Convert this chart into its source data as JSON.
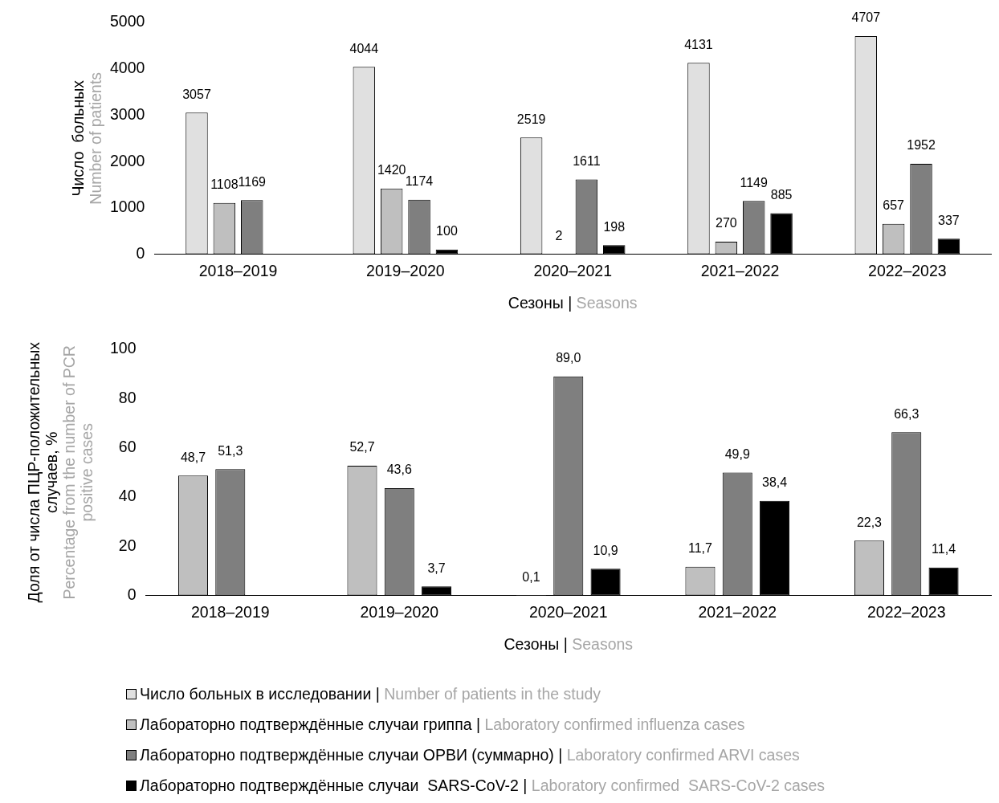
{
  "chart_data": [
    {
      "type": "bar",
      "ylabel": "Число  больных\nNumber of patients",
      "xlabel": "Сезоны | Seasons",
      "categories": [
        "2018–2019",
        "2019–2020",
        "2020–2021",
        "2021–2022",
        "2022–2023"
      ],
      "ylim": [
        0,
        5000
      ],
      "yticks": [
        0,
        1000,
        2000,
        3000,
        4000,
        5000
      ],
      "grid": false,
      "legend": "bottom",
      "data_labels": true,
      "series": [
        {
          "name": "Число больных в исследовании | Number of patients in the study",
          "color": "#e0e0e0",
          "values": [
            3057,
            4044,
            2519,
            4131,
            4707
          ]
        },
        {
          "name": "Лабораторно подтверждённые случаи гриппа | Laboratory confirmed influenza cases",
          "color": "#bfbfbf",
          "values": [
            1108,
            1420,
            2,
            270,
            657
          ]
        },
        {
          "name": "Лабораторно подтверждённые случаи ОРВИ (суммарно) | Laboratory confirmed ARVI cases",
          "color": "#7f7f7f",
          "values": [
            1169,
            1174,
            1611,
            1149,
            1952
          ]
        },
        {
          "name": "Лабораторно подтверждённые случаи  SARS-CoV-2 | Laboratory confirmed  SARS-CoV-2 cases",
          "color": "#000000",
          "values": [
            null,
            100,
            198,
            885,
            337
          ]
        }
      ]
    },
    {
      "type": "bar",
      "ylabel": "Доля от числа ПЦР-положительных случаев, %\nPercentage from the number of PCR positive cases",
      "xlabel": "Сезоны | Seasons",
      "categories": [
        "2018–2019",
        "2019–2020",
        "2020–2021",
        "2021–2022",
        "2022–2023"
      ],
      "ylim": [
        0,
        100
      ],
      "yticks": [
        0,
        20,
        40,
        60,
        80,
        100
      ],
      "grid": false,
      "legend": "bottom",
      "series": [
        {
          "name": "Лабораторно подтверждённые случаи гриппа | Laboratory confirmed influenza cases",
          "color": "#bfbfbf",
          "values": [
            48.7,
            52.7,
            0.1,
            11.7,
            22.3
          ],
          "value_labels": [
            "48,7",
            "52,7",
            "0,1",
            "11,7",
            "22,3"
          ]
        },
        {
          "name": "Лабораторно подтверждённые случаи ОРВИ (суммарно) | Laboratory confirmed ARVI cases",
          "color": "#7f7f7f",
          "values": [
            51.3,
            43.6,
            89.0,
            49.9,
            66.3
          ],
          "value_labels": [
            "51,3",
            "43,6",
            "89,0",
            "49,9",
            "66,3"
          ]
        },
        {
          "name": "Лабораторно подтверждённые случаи  SARS-CoV-2 | Laboratory confirmed  SARS-CoV-2 cases",
          "color": "#000000",
          "values": [
            null,
            3.7,
            10.9,
            38.4,
            11.4
          ],
          "value_labels": [
            null,
            "3,7",
            "10,9",
            "38,4",
            "11,4"
          ]
        }
      ]
    }
  ]
}
